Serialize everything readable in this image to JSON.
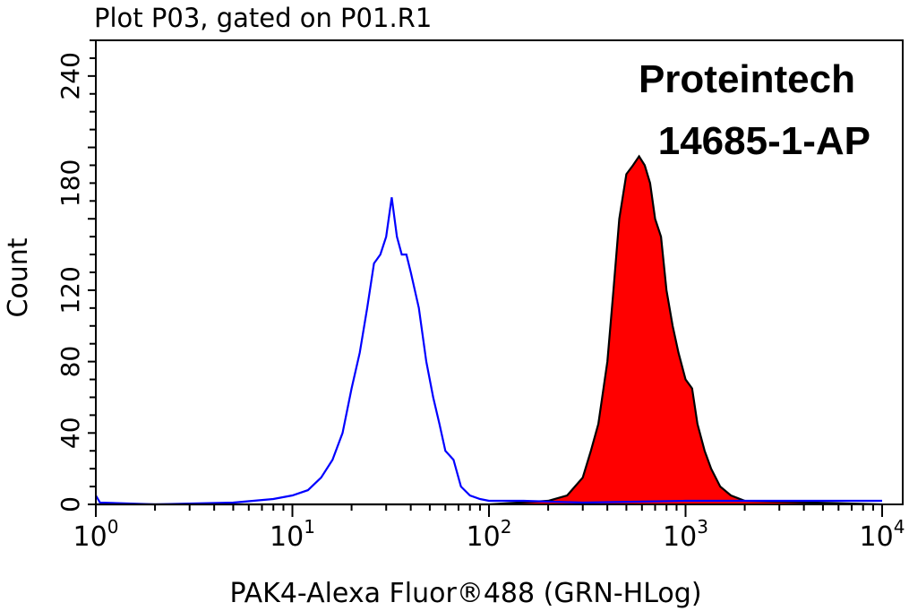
{
  "chart_data": {
    "type": "area",
    "title": "Plot P03, gated on P01.R1",
    "xlabel": "PAK4-Alexa Fluor®488 (GRN-HLog)",
    "ylabel": "Count",
    "xscale": "log",
    "xlim": [
      1,
      10000
    ],
    "ylim": [
      0,
      260
    ],
    "x_tick_labels": [
      {
        "base": "10",
        "exp": "0",
        "value": 1
      },
      {
        "base": "10",
        "exp": "1",
        "value": 10
      },
      {
        "base": "10",
        "exp": "2",
        "value": 100
      },
      {
        "base": "10",
        "exp": "3",
        "value": 1000
      },
      {
        "base": "10",
        "exp": "4",
        "value": 10000
      }
    ],
    "y_tick_labels": [
      {
        "text": "0",
        "value": 0
      },
      {
        "text": "40",
        "value": 40
      },
      {
        "text": "80",
        "value": 80
      },
      {
        "text": "120",
        "value": 120
      },
      {
        "text": "180",
        "value": 180
      },
      {
        "text": "240",
        "value": 240
      }
    ],
    "annotation": [
      "Proteintech",
      "14685-1-AP"
    ],
    "grid": false,
    "series": [
      {
        "color": "#0000ff",
        "fill": "none",
        "x": [
          1,
          1.05,
          2,
          5,
          8,
          10,
          12,
          14,
          16,
          18,
          20,
          22,
          24,
          26,
          28,
          30,
          32,
          34,
          36,
          38,
          40,
          44,
          48,
          52,
          56,
          60,
          66,
          72,
          80,
          90,
          100,
          150,
          300,
          1000,
          3000,
          10000
        ],
        "y": [
          5,
          1,
          0,
          1,
          3,
          5,
          8,
          15,
          25,
          40,
          65,
          85,
          110,
          135,
          140,
          150,
          172,
          150,
          140,
          140,
          130,
          110,
          80,
          60,
          45,
          30,
          25,
          10,
          5,
          3,
          2,
          2,
          1,
          2,
          2,
          2
        ]
      },
      {
        "color": "#000000",
        "fill": "#ff0000",
        "x": [
          1,
          100,
          200,
          250,
          300,
          330,
          360,
          400,
          430,
          460,
          500,
          540,
          580,
          620,
          660,
          700,
          750,
          800,
          860,
          920,
          1000,
          1080,
          1150,
          1250,
          1350,
          1500,
          1700,
          2000,
          10000
        ],
        "y": [
          0,
          0,
          2,
          5,
          15,
          30,
          45,
          80,
          120,
          160,
          185,
          190,
          195,
          190,
          180,
          160,
          150,
          120,
          100,
          85,
          70,
          65,
          45,
          30,
          20,
          10,
          5,
          2,
          0
        ]
      }
    ]
  }
}
